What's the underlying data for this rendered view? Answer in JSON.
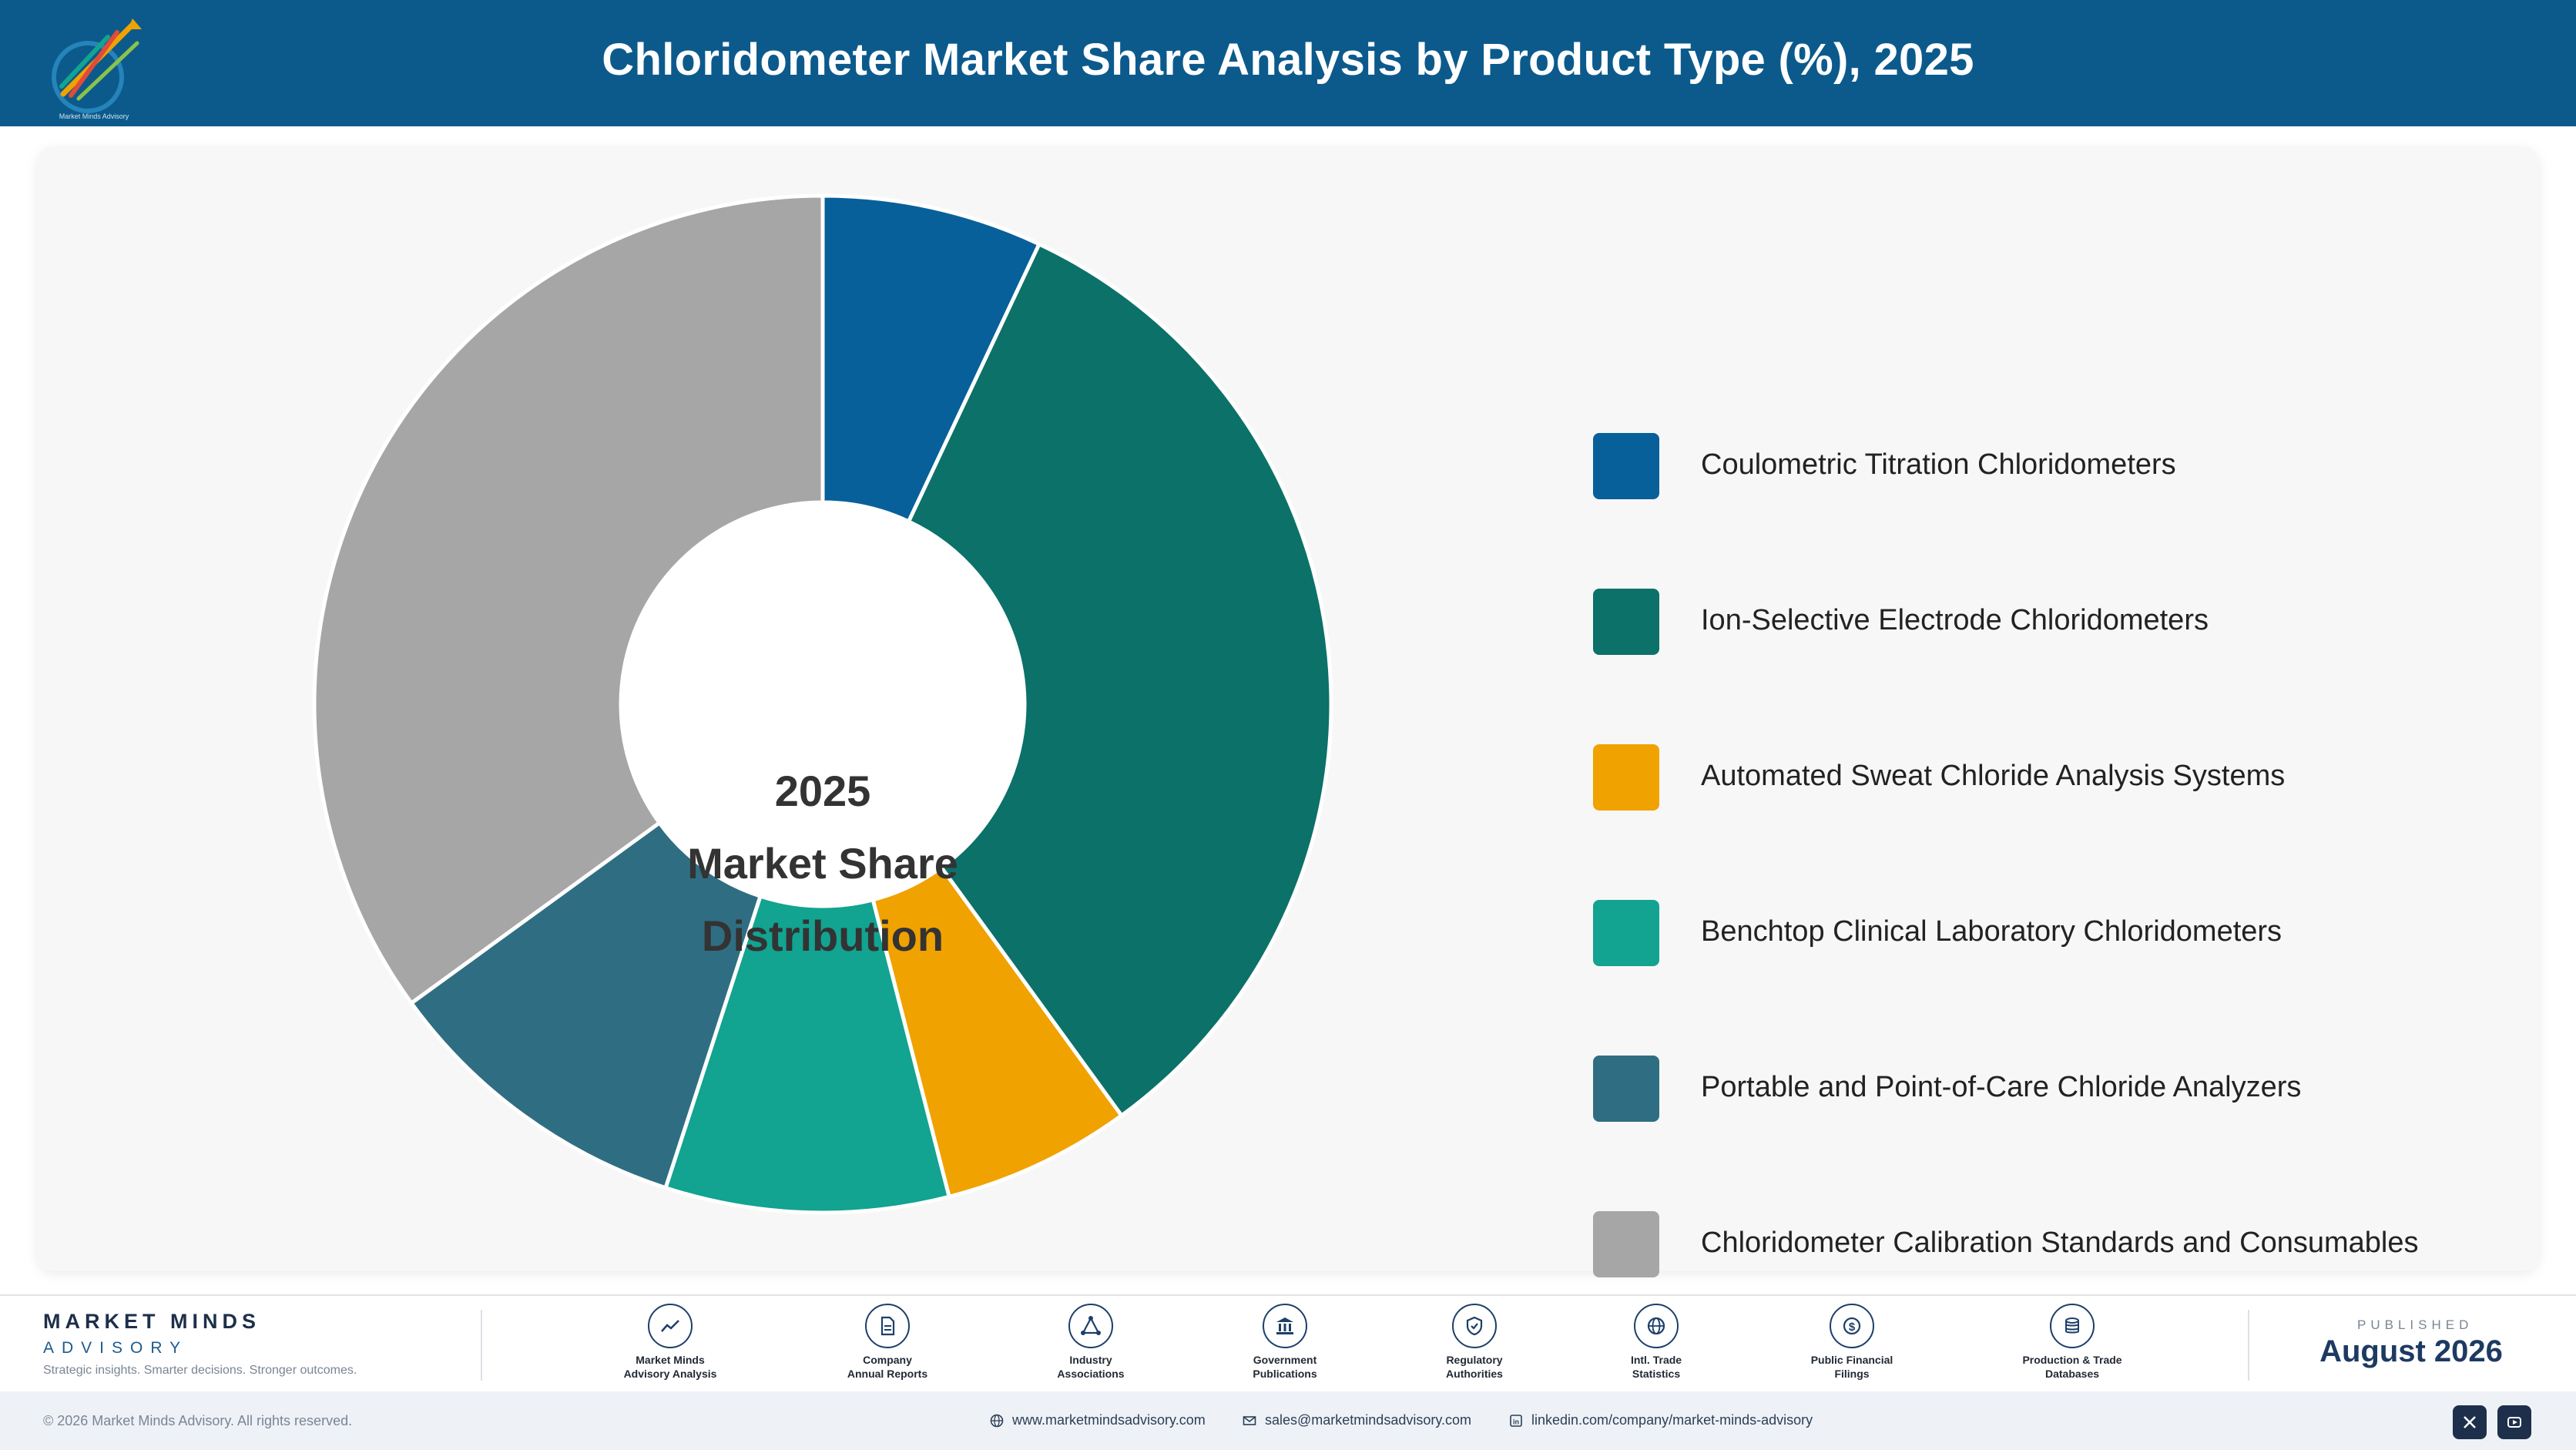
{
  "header": {
    "title": "Chloridometer Market Share Analysis by Product Type (%), 2025",
    "logo_text": "Market Minds Advisory"
  },
  "chart_data": {
    "type": "pie",
    "variant": "donut",
    "center_label": [
      "2025",
      "Market Share",
      "Distribution"
    ],
    "legend_position": "right",
    "slices": [
      {
        "label": "Coulometric Titration Chloridometers",
        "value": 7.0,
        "color": "#07609a"
      },
      {
        "label": "Ion-Selective Electrode Chloridometers",
        "value": 33.0,
        "color": "#0b7169"
      },
      {
        "label": "Automated Sweat Chloride Analysis Systems",
        "value": 6.0,
        "color": "#f0a201"
      },
      {
        "label": "Benchtop Clinical Laboratory Chloridometers",
        "value": 9.0,
        "color": "#12a391"
      },
      {
        "label": "Portable and Point-of-Care Chloride Analyzers",
        "value": 10.0,
        "color": "#2f6e82"
      },
      {
        "label": "Chloridometer Calibration Standards and Consumables",
        "value": 35.0,
        "color": "#a6a6a6"
      }
    ]
  },
  "footer": {
    "brand_name": "MARKET MINDS",
    "brand_sub": "ADVISORY",
    "brand_tagline": "Strategic insights. Smarter decisions. Stronger outcomes.",
    "sources": [
      {
        "line1": "Market Minds",
        "line2": "Advisory Analysis",
        "icon": "trend-line-icon"
      },
      {
        "line1": "Company",
        "line2": "Annual Reports",
        "icon": "document-icon"
      },
      {
        "line1": "Industry",
        "line2": "Associations",
        "icon": "network-icon"
      },
      {
        "line1": "Government",
        "line2": "Publications",
        "icon": "government-building-icon"
      },
      {
        "line1": "Regulatory",
        "line2": "Authorities",
        "icon": "shield-check-icon"
      },
      {
        "line1": "Intl. Trade",
        "line2": "Statistics",
        "icon": "globe-icon"
      },
      {
        "line1": "Public Financial",
        "line2": "Filings",
        "icon": "dollar-coin-icon"
      },
      {
        "line1": "Production & Trade",
        "line2": "Databases",
        "icon": "database-icon"
      }
    ],
    "published_label": "PUBLISHED",
    "published_date": "August 2026"
  },
  "bottom_bar": {
    "copyright": "© 2026 Market Minds Advisory. All rights reserved.",
    "website": "www.marketmindsadvisory.com",
    "email": "sales@marketmindsadvisory.com",
    "linkedin": "linkedin.com/company/market-minds-advisory"
  },
  "colors": {
    "header_bg": "#0c5a8c",
    "accent_dark": "#1d2f4a"
  }
}
